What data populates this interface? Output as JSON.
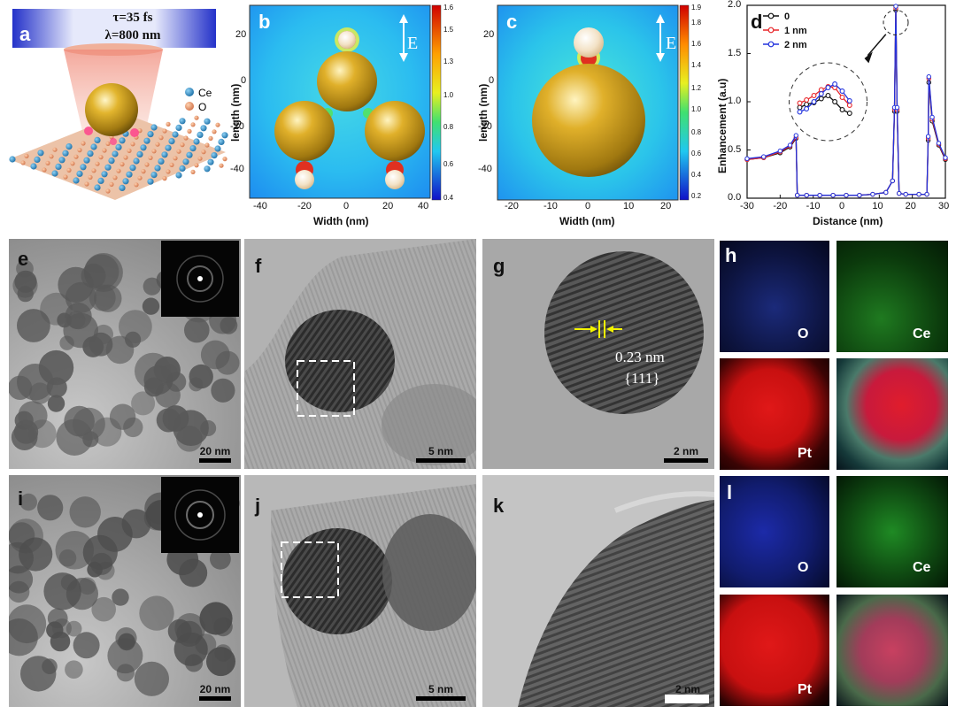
{
  "panels": {
    "a": {
      "label": "a",
      "pulse": "τ=35 fs",
      "wavelength": "λ=800 nm",
      "legend": [
        {
          "name": "Ce",
          "color": "#2d8fc8"
        },
        {
          "name": "O",
          "color": "#e89060"
        }
      ]
    },
    "b": {
      "label": "b",
      "field": "E",
      "xlabel": "Width (nm)",
      "ylabel": "length (nm)",
      "xticks": [
        "-40",
        "-20",
        "0",
        "20",
        "40"
      ],
      "yticks": [
        "20",
        "0",
        "-20",
        "-40"
      ],
      "colorbar": [
        "1.6",
        "1.5",
        "1.3",
        "1.0",
        "0.8",
        "0.6",
        "0.4"
      ]
    },
    "c": {
      "label": "c",
      "field": "E",
      "xlabel": "Width (nm)",
      "ylabel": "length (nm)",
      "xticks": [
        "-20",
        "-10",
        "0",
        "10",
        "20"
      ],
      "yticks": [
        "20",
        "0",
        "-20",
        "-40"
      ],
      "colorbar": [
        "1.9",
        "1.8",
        "1.6",
        "1.4",
        "1.2",
        "1.0",
        "0.8",
        "0.6",
        "0.4",
        "0.2"
      ]
    },
    "d": {
      "label": "d"
    },
    "e": {
      "label": "e",
      "scale": "20 nm"
    },
    "f": {
      "label": "f",
      "scale": "5 nm"
    },
    "g": {
      "label": "g",
      "scale": "2 nm",
      "spacing": "0.23 nm",
      "plane": "{111}"
    },
    "h": {
      "label": "h",
      "elements": [
        "O",
        "Ce",
        "Pt"
      ]
    },
    "i": {
      "label": "i",
      "scale": "20 nm"
    },
    "j": {
      "label": "j",
      "scale": "5 nm"
    },
    "k": {
      "label": "k",
      "scale": "2 nm"
    },
    "l": {
      "label": "l",
      "elements": [
        "O",
        "Ce",
        "Pt"
      ]
    }
  },
  "chart_data": {
    "type": "line",
    "title": "",
    "xlabel": "Distance (nm)",
    "ylabel": "Enhancement (a.u)",
    "xlim": [
      -30,
      30
    ],
    "ylim": [
      0,
      2.0
    ],
    "xticks": [
      "-30",
      "-20",
      "-10",
      "0",
      "10",
      "20",
      "30"
    ],
    "yticks": [
      "0.0",
      "0.5",
      "1.0",
      "1.5",
      "2.0"
    ],
    "legend_position": "top-left",
    "series": [
      {
        "name": "0",
        "color": "#111111",
        "x": [
          -30,
          -25,
          -20,
          -17,
          -15.2,
          -14.8,
          -12,
          -8,
          -4,
          0,
          4,
          8,
          12,
          14,
          14.6,
          15,
          15.4,
          16,
          18,
          22,
          24.4,
          24.8,
          25,
          26,
          28,
          30
        ],
        "y": [
          0.4,
          0.42,
          0.47,
          0.53,
          0.62,
          0.03,
          0.03,
          0.03,
          0.03,
          0.03,
          0.03,
          0.04,
          0.06,
          0.18,
          0.9,
          1.95,
          0.9,
          0.05,
          0.04,
          0.04,
          0.04,
          0.6,
          1.2,
          0.8,
          0.55,
          0.4
        ]
      },
      {
        "name": "1 nm",
        "color": "#e8262a",
        "x": [
          -30,
          -25,
          -20,
          -17,
          -15.2,
          -14.8,
          -12,
          -8,
          -4,
          0,
          4,
          8,
          12,
          14,
          14.6,
          15,
          15.4,
          16,
          18,
          22,
          24.4,
          24.8,
          25,
          26,
          28,
          30
        ],
        "y": [
          0.4,
          0.42,
          0.48,
          0.54,
          0.63,
          0.03,
          0.03,
          0.03,
          0.03,
          0.03,
          0.03,
          0.04,
          0.06,
          0.18,
          0.92,
          1.97,
          0.92,
          0.05,
          0.04,
          0.04,
          0.04,
          0.62,
          1.24,
          0.82,
          0.56,
          0.41
        ]
      },
      {
        "name": "2 nm",
        "color": "#2233dd",
        "x": [
          -30,
          -25,
          -20,
          -17,
          -15.2,
          -14.8,
          -12,
          -8,
          -4,
          0,
          4,
          8,
          12,
          14,
          14.6,
          15,
          15.4,
          16,
          18,
          22,
          24.4,
          24.8,
          25,
          26,
          28,
          30
        ],
        "y": [
          0.41,
          0.43,
          0.49,
          0.55,
          0.65,
          0.03,
          0.03,
          0.03,
          0.03,
          0.03,
          0.03,
          0.04,
          0.06,
          0.18,
          0.94,
          1.99,
          0.94,
          0.05,
          0.04,
          0.04,
          0.04,
          0.64,
          1.26,
          0.84,
          0.57,
          0.42
        ]
      }
    ],
    "inset": {
      "series": [
        {
          "name": "0",
          "color": "#111111",
          "points": [
            [
              0,
              0.35
            ],
            [
              0.12,
              0.42
            ],
            [
              0.25,
              0.46
            ],
            [
              0.38,
              0.55
            ],
            [
              0.5,
              0.62
            ],
            [
              0.62,
              0.48
            ],
            [
              0.75,
              0.3
            ],
            [
              0.88,
              0.22
            ]
          ]
        },
        {
          "name": "1 nm",
          "color": "#e8262a",
          "points": [
            [
              0,
              0.45
            ],
            [
              0.12,
              0.52
            ],
            [
              0.25,
              0.62
            ],
            [
              0.38,
              0.75
            ],
            [
              0.5,
              0.82
            ],
            [
              0.62,
              0.8
            ],
            [
              0.75,
              0.58
            ],
            [
              0.88,
              0.4
            ]
          ]
        },
        {
          "name": "2 nm",
          "color": "#2233dd",
          "points": [
            [
              0,
              0.25
            ],
            [
              0.12,
              0.32
            ],
            [
              0.25,
              0.48
            ],
            [
              0.38,
              0.66
            ],
            [
              0.5,
              0.8
            ],
            [
              0.62,
              0.88
            ],
            [
              0.75,
              0.72
            ],
            [
              0.88,
              0.5
            ]
          ]
        }
      ]
    }
  }
}
